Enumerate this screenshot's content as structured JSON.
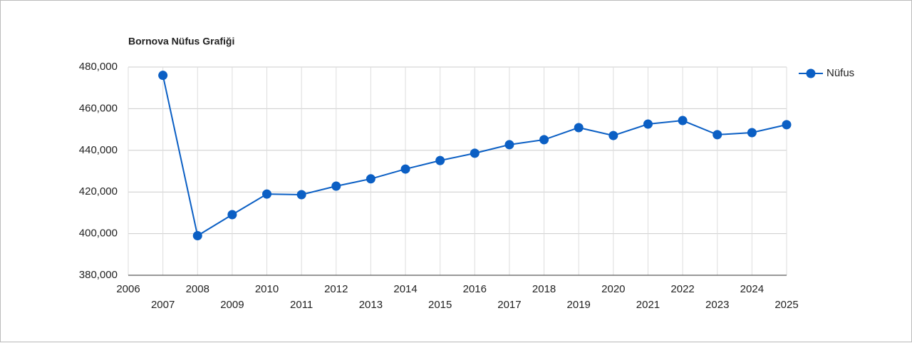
{
  "chart_data": {
    "type": "line",
    "title": "Bornova Nüfus Grafiği",
    "x": [
      2007,
      2008,
      2009,
      2010,
      2011,
      2012,
      2013,
      2014,
      2015,
      2016,
      2017,
      2018,
      2019,
      2020,
      2021,
      2022,
      2023,
      2024,
      2025
    ],
    "series": [
      {
        "name": "Nüfus",
        "color": "#0b5fc4",
        "values": [
          476000,
          399000,
          409100,
          419000,
          418700,
          422800,
          426300,
          431000,
          435100,
          438600,
          442700,
          445100,
          450900,
          447100,
          452600,
          454300,
          447500,
          448500,
          452300
        ]
      }
    ],
    "xlim": [
      2006,
      2025
    ],
    "xticks": [
      2006,
      2007,
      2008,
      2009,
      2010,
      2011,
      2012,
      2013,
      2014,
      2015,
      2016,
      2017,
      2018,
      2019,
      2020,
      2021,
      2022,
      2023,
      2024,
      2025
    ],
    "ylim": [
      380000,
      480000
    ],
    "yticks": [
      {
        "value": 380000,
        "label": "380,000"
      },
      {
        "value": 400000,
        "label": "400,000"
      },
      {
        "value": 420000,
        "label": "420,000"
      },
      {
        "value": 440000,
        "label": "440,000"
      },
      {
        "value": 460000,
        "label": "460,000"
      },
      {
        "value": 480000,
        "label": "480,000"
      }
    ],
    "grid": true,
    "legend": "right"
  }
}
